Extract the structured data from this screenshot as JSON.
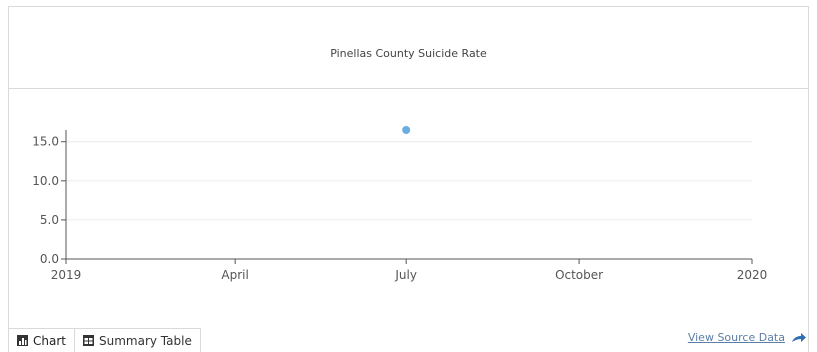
{
  "chart_data": {
    "type": "scatter",
    "title": "Pinellas County Suicide Rate",
    "xlabel": "",
    "ylabel": "",
    "x_tick_labels": [
      "2019",
      "April",
      "July",
      "October",
      "2020"
    ],
    "y_tick_labels": [
      "0.0",
      "5.0",
      "10.0",
      "15.0"
    ],
    "y_ticks": [
      0,
      5,
      10,
      15
    ],
    "ylim": [
      0,
      16.5
    ],
    "xlim": [
      "2019-01-01",
      "2020-01-01"
    ],
    "x_ticks": [
      "2019-01-01",
      "2019-04-01",
      "2019-07-01",
      "2019-10-01",
      "2020-01-01"
    ],
    "series": [
      {
        "points": [
          {
            "x": "2019-07-01",
            "y": 16.5
          }
        ],
        "color": "#6aaee0"
      }
    ],
    "grid": true,
    "gridline_color": "#ececec"
  },
  "tabs": [
    {
      "label": "Chart",
      "icon": "chart-icon",
      "active": true
    },
    {
      "label": "Summary Table",
      "icon": "table-icon",
      "active": false
    }
  ],
  "source_link": {
    "label": "View Source Data",
    "icon": "share-arrow-icon"
  }
}
